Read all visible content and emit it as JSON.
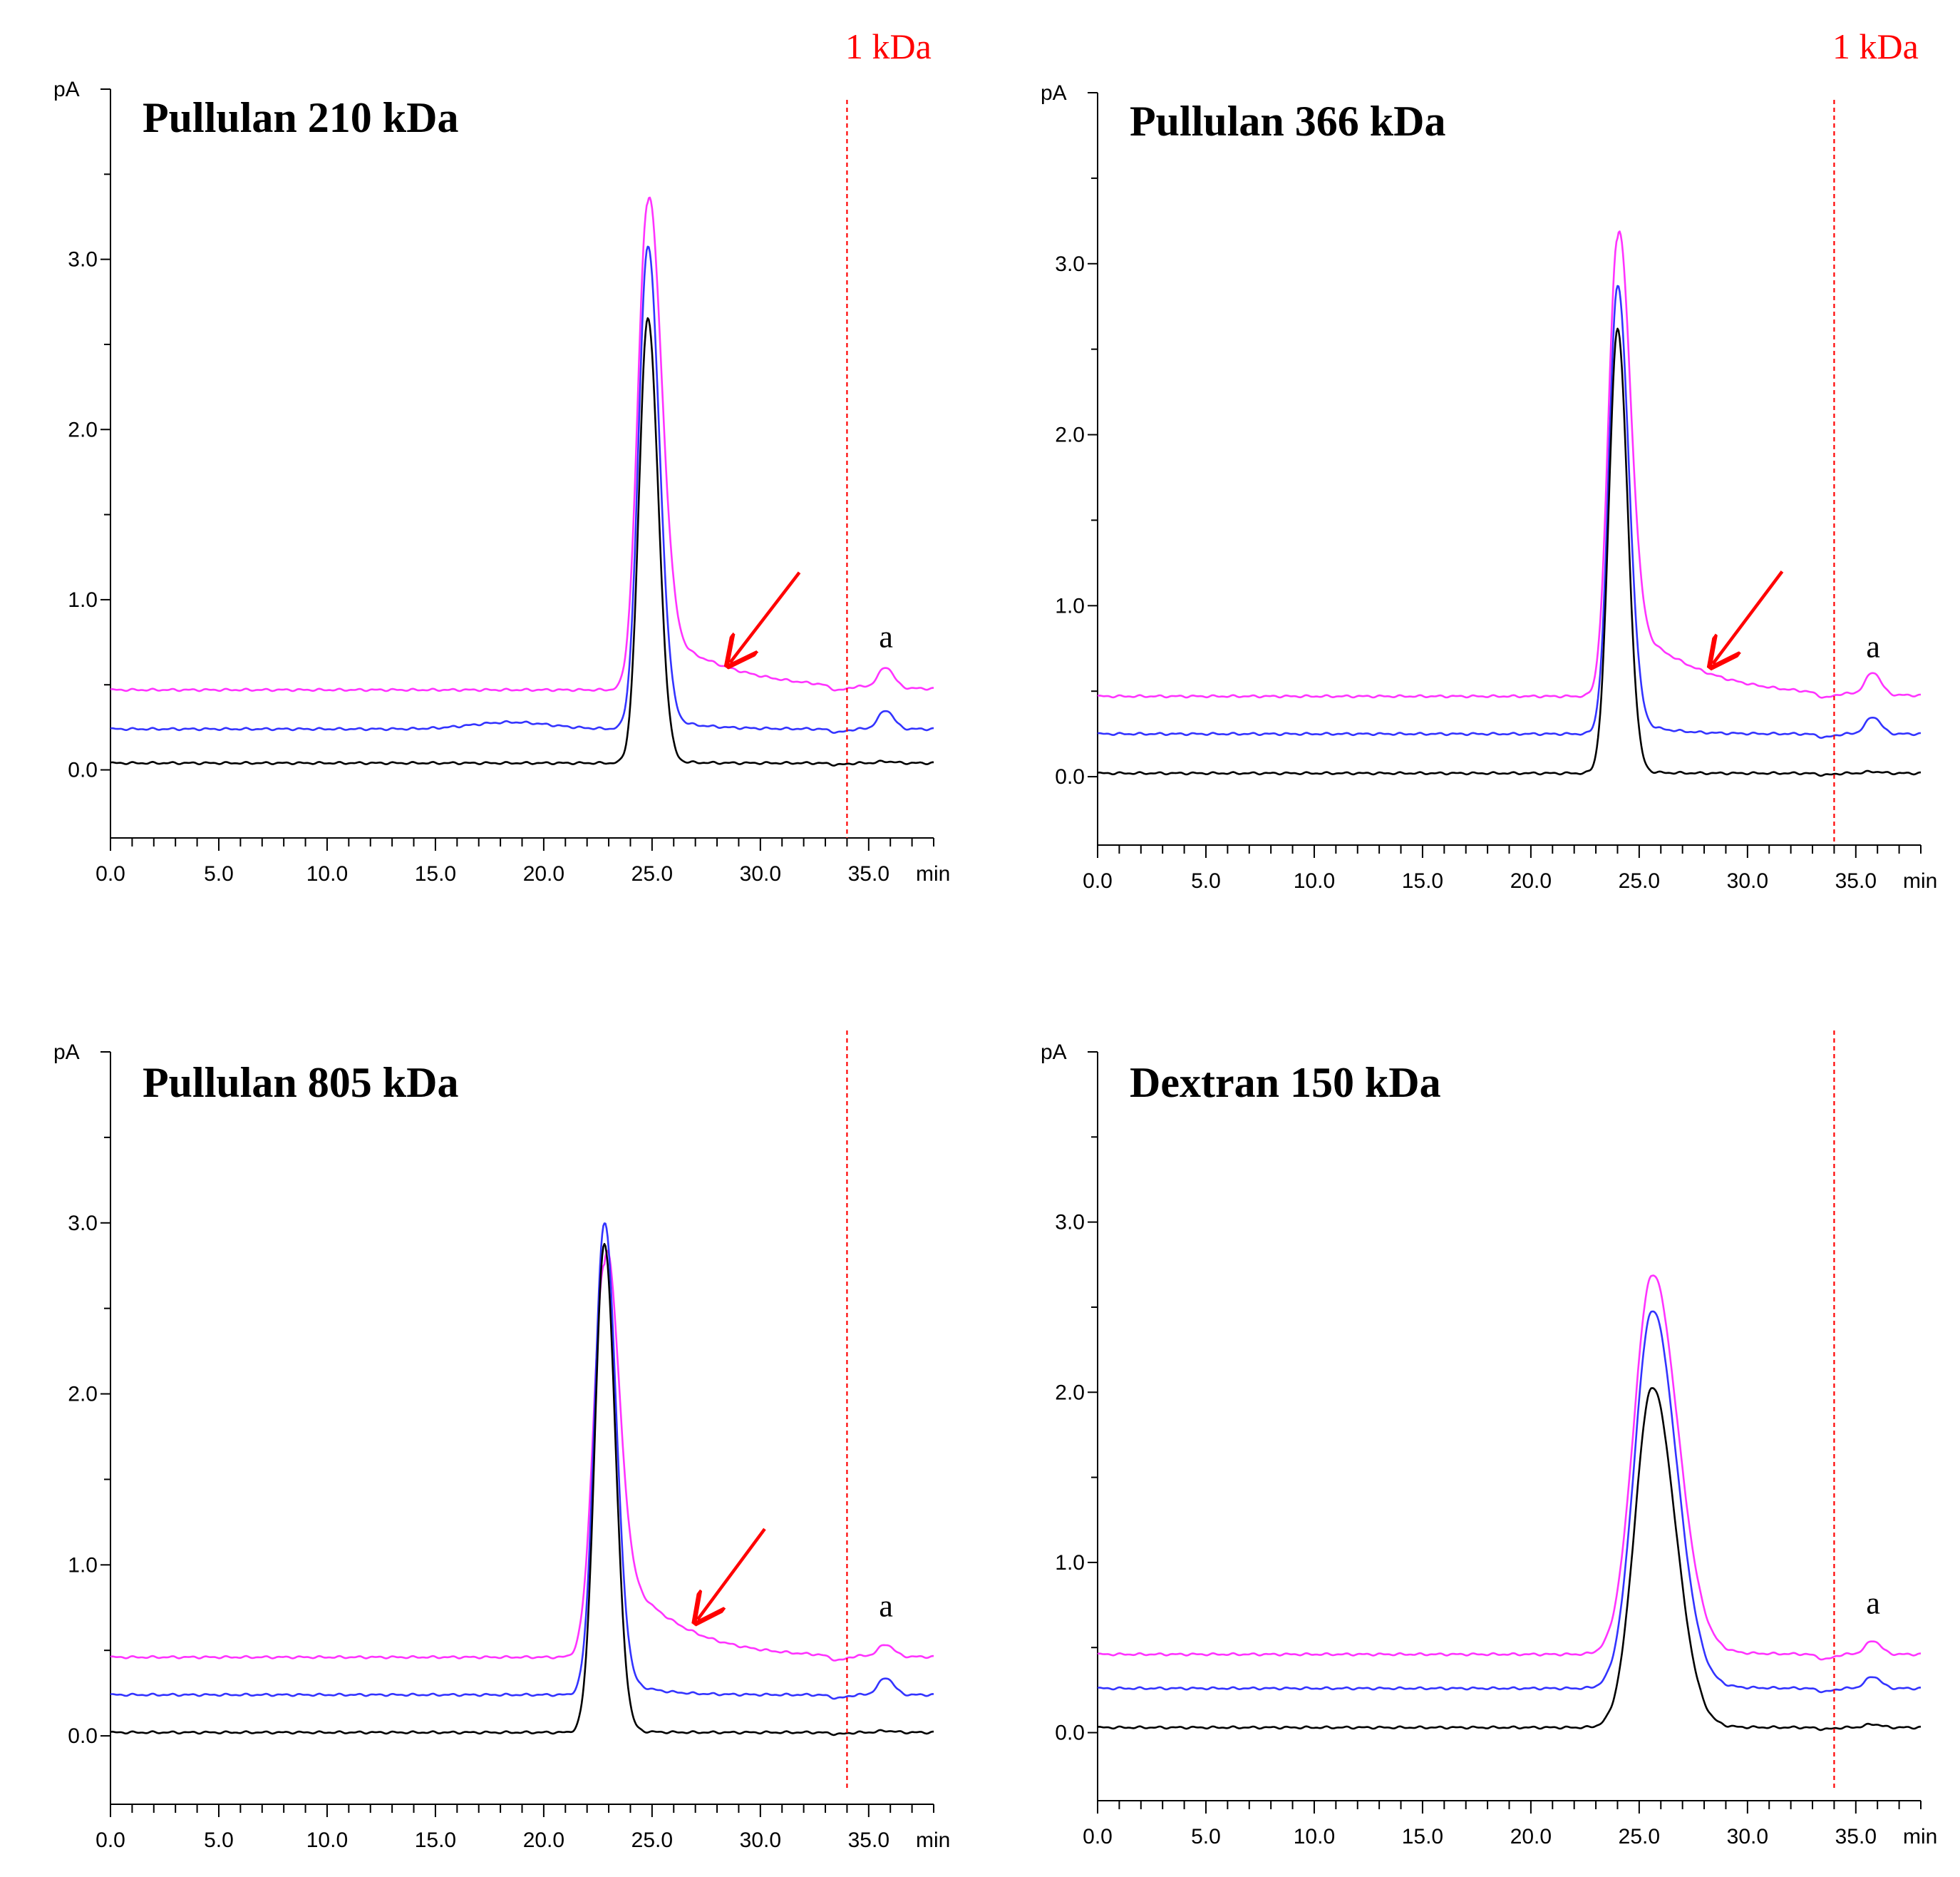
{
  "chart_data": [
    {
      "type": "line",
      "title": "Pullulan 210 kDa",
      "ylabel": "pA",
      "xlabel": "min",
      "x_ticks": [
        "0.0",
        "5.0",
        "10.0",
        "15.0",
        "20.0",
        "25.0",
        "30.0",
        "35.0"
      ],
      "y_ticks": [
        "0.0",
        "1.0",
        "2.0",
        "3.0"
      ],
      "xlim": [
        0,
        38
      ],
      "ylim": [
        -0.4,
        4.0
      ],
      "reference_line": {
        "x": 34.0,
        "label": "1 kDa",
        "color": "#ff0000"
      },
      "annotations": [
        {
          "type": "arrow",
          "from": [
            31.8,
            1.16
          ],
          "to": [
            28.6,
            0.63
          ],
          "color": "#ff0000"
        },
        {
          "type": "text",
          "text": "a",
          "at": [
            35.8,
            0.72
          ]
        }
      ],
      "series": [
        {
          "name": "magenta",
          "color": "#ff33ff",
          "baseline": 0.47,
          "peak_time": 24.8,
          "peak_height": 2.87,
          "sigma_left": 0.45,
          "sigma_right": 0.6,
          "tail_amp": 0.42,
          "tail_tau": 3.2,
          "small_peak": 0.12,
          "dip": 0.03
        },
        {
          "name": "blue",
          "color": "#3333ff",
          "baseline": 0.24,
          "peak_time": 24.8,
          "peak_height": 2.84,
          "sigma_left": 0.42,
          "sigma_right": 0.52,
          "tail_amp": 0.1,
          "tail_tau": 1.6,
          "small_peak": 0.11,
          "dip": 0.02,
          "bump_time": 18.5,
          "bump_amp": 0.04
        },
        {
          "name": "black",
          "color": "#000000",
          "baseline": 0.04,
          "peak_time": 24.8,
          "peak_height": 2.62,
          "sigma_left": 0.4,
          "sigma_right": 0.48,
          "tail_amp": 0.03,
          "tail_tau": 1.0,
          "small_peak": 0.01,
          "dip": 0.01
        }
      ]
    },
    {
      "type": "line",
      "title": "Pullulan 366 kDa",
      "ylabel": "pA",
      "xlabel": "min",
      "x_ticks": [
        "0.0",
        "5.0",
        "10.0",
        "15.0",
        "20.0",
        "25.0",
        "30.0",
        "35.0"
      ],
      "y_ticks": [
        "0.0",
        "1.0",
        "2.0",
        "3.0"
      ],
      "xlim": [
        0,
        38
      ],
      "ylim": [
        -0.4,
        4.0
      ],
      "reference_line": {
        "x": 34.0,
        "label": "1 kDa",
        "color": "#ff0000"
      },
      "annotations": [
        {
          "type": "arrow",
          "from": [
            31.6,
            1.2
          ],
          "to": [
            28.4,
            0.66
          ],
          "color": "#ff0000"
        },
        {
          "type": "text",
          "text": "a",
          "at": [
            35.8,
            0.7
          ]
        }
      ],
      "series": [
        {
          "name": "magenta",
          "color": "#ff33ff",
          "baseline": 0.47,
          "peak_time": 24.0,
          "peak_height": 2.68,
          "sigma_left": 0.42,
          "sigma_right": 0.55,
          "tail_amp": 0.55,
          "tail_tau": 3.0,
          "small_peak": 0.13,
          "dip": 0.03
        },
        {
          "name": "blue",
          "color": "#3333ff",
          "baseline": 0.25,
          "peak_time": 24.0,
          "peak_height": 2.62,
          "sigma_left": 0.4,
          "sigma_right": 0.5,
          "tail_amp": 0.12,
          "tail_tau": 1.5,
          "small_peak": 0.1,
          "dip": 0.02
        },
        {
          "name": "black",
          "color": "#000000",
          "baseline": 0.02,
          "peak_time": 24.0,
          "peak_height": 2.6,
          "sigma_left": 0.4,
          "sigma_right": 0.46,
          "tail_amp": 0.03,
          "tail_tau": 1.0,
          "small_peak": 0.01,
          "dip": 0.01
        }
      ]
    },
    {
      "type": "line",
      "title": "Pullulan 805 kDa",
      "ylabel": "pA",
      "xlabel": "min",
      "x_ticks": [
        "0.0",
        "5.0",
        "10.0",
        "15.0",
        "20.0",
        "25.0",
        "30.0",
        "35.0"
      ],
      "y_ticks": [
        "0.0",
        "1.0",
        "2.0",
        "3.0"
      ],
      "xlim": [
        0,
        38
      ],
      "ylim": [
        -0.4,
        4.0
      ],
      "reference_line": {
        "x": 34.0,
        "label": "",
        "color": "#ff0000"
      },
      "annotations": [
        {
          "type": "arrow",
          "from": [
            30.2,
            1.21
          ],
          "to": [
            27.1,
            0.68
          ],
          "color": "#ff0000"
        },
        {
          "type": "text",
          "text": "a",
          "at": [
            35.8,
            0.7
          ]
        }
      ],
      "series": [
        {
          "name": "magenta",
          "color": "#ff33ff",
          "baseline": 0.46,
          "peak_time": 22.8,
          "peak_height": 2.3,
          "sigma_left": 0.5,
          "sigma_right": 0.6,
          "tail_amp": 0.72,
          "tail_tau": 2.6,
          "small_peak": 0.07,
          "dip": 0.03
        },
        {
          "name": "blue",
          "color": "#3333ff",
          "baseline": 0.24,
          "peak_time": 22.8,
          "peak_height": 2.76,
          "sigma_left": 0.45,
          "sigma_right": 0.52,
          "tail_amp": 0.16,
          "tail_tau": 1.4,
          "small_peak": 0.1,
          "dip": 0.02
        },
        {
          "name": "black",
          "color": "#000000",
          "baseline": 0.02,
          "peak_time": 22.8,
          "peak_height": 2.86,
          "sigma_left": 0.44,
          "sigma_right": 0.5,
          "tail_amp": 0.03,
          "tail_tau": 1.0,
          "small_peak": 0.01,
          "dip": 0.01
        }
      ]
    },
    {
      "type": "line",
      "title": "Dextran 150 kDa",
      "ylabel": "pA",
      "xlabel": "min",
      "x_ticks": [
        "0.0",
        "5.0",
        "10.0",
        "15.0",
        "20.0",
        "25.0",
        "30.0",
        "35.0"
      ],
      "y_ticks": [
        "0.0",
        "1.0",
        "2.0",
        "3.0"
      ],
      "xlim": [
        0,
        38
      ],
      "ylim": [
        -0.4,
        4.0
      ],
      "reference_line": {
        "x": 34.0,
        "label": "",
        "color": "#ff0000"
      },
      "annotations": [
        {
          "type": "text",
          "text": "a",
          "at": [
            35.8,
            0.7
          ]
        }
      ],
      "series": [
        {
          "name": "magenta",
          "color": "#ff33ff",
          "baseline": 0.46,
          "peak_time": 25.6,
          "peak_height": 2.23,
          "sigma_left": 0.85,
          "sigma_right": 1.15,
          "tail_amp": 0.06,
          "tail_tau": 2.0,
          "small_peak": 0.08,
          "dip": 0.03
        },
        {
          "name": "blue",
          "color": "#3333ff",
          "baseline": 0.26,
          "peak_time": 25.6,
          "peak_height": 2.22,
          "sigma_left": 0.82,
          "sigma_right": 1.1,
          "tail_amp": 0.05,
          "tail_tau": 1.8,
          "small_peak": 0.07,
          "dip": 0.02
        },
        {
          "name": "black",
          "color": "#000000",
          "baseline": 0.03,
          "peak_time": 25.6,
          "peak_height": 2.0,
          "sigma_left": 0.8,
          "sigma_right": 1.05,
          "tail_amp": 0.03,
          "tail_tau": 1.5,
          "small_peak": 0.02,
          "dip": 0.01
        }
      ]
    }
  ]
}
